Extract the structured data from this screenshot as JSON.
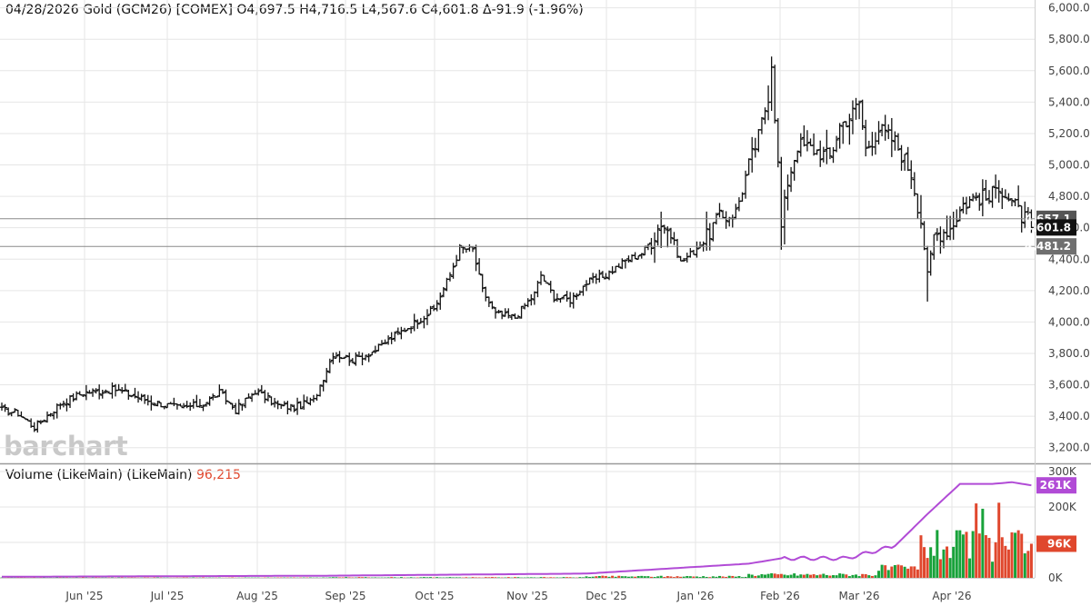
{
  "header": {
    "quote": "04/28/2026 Gold (GCM26) [COMEX] O4,697.5 H4,716.5 L4,567.6 C4,601.8 Δ-91.9 (-1.96%)"
  },
  "watermark": "barchart",
  "volume_header": {
    "label": "Volume (LikeMain)  (LikeMain)",
    "value": "96,215"
  },
  "price_labels": {
    "last": "4,601.8",
    "line2": "4,481.2",
    "line1": "4,657.1"
  },
  "volume_labels": {
    "open_interest": "261K",
    "volume": "96K"
  },
  "colors": {
    "up": "#18a23a",
    "down": "#e0472d",
    "oi_line": "#b14bd6",
    "price_bar": "#111111",
    "grid": "#e6e6e6",
    "last_label_bg": "#111111",
    "ref_label_bg": "#6f6f6f"
  },
  "chart_data": [
    {
      "type": "ohlc",
      "title": "04/28/2026 Gold (GCM26) [COMEX]",
      "ylim": [
        3100,
        6050
      ],
      "y_ticks": [
        "3,200.0",
        "3,400.0",
        "3,600.0",
        "3,800.0",
        "4,000.0",
        "4,200.0",
        "4,400.0",
        "4,600.0",
        "4,800.0",
        "5,000.0",
        "5,200.0",
        "5,400.0",
        "5,600.0",
        "5,800.0",
        "6,000.0"
      ],
      "x_labels": [
        "Jun '25",
        "Jul '25",
        "Aug '25",
        "Sep '25",
        "Oct '25",
        "Nov '25",
        "Dec '25",
        "Jan '26",
        "Feb '26",
        "Mar '26",
        "Apr '26"
      ],
      "last_bar": {
        "open": 4697.5,
        "high": 4716.5,
        "low": 4567.6,
        "close": 4601.8,
        "change": -91.9,
        "change_pct": -1.96
      },
      "reference_lines": [
        4657.1,
        4481.2
      ],
      "anchors": [
        [
          0,
          3440
        ],
        [
          5,
          3420
        ],
        [
          10,
          3330
        ],
        [
          18,
          3480
        ],
        [
          25,
          3550
        ],
        [
          35,
          3570
        ],
        [
          45,
          3500
        ],
        [
          55,
          3450
        ],
        [
          62,
          3480
        ],
        [
          67,
          3550
        ],
        [
          72,
          3440
        ],
        [
          78,
          3560
        ],
        [
          85,
          3470
        ],
        [
          90,
          3455
        ],
        [
          96,
          3500
        ],
        [
          102,
          3800
        ],
        [
          108,
          3760
        ],
        [
          115,
          3820
        ],
        [
          120,
          3900
        ],
        [
          126,
          3980
        ],
        [
          133,
          4080
        ],
        [
          138,
          4300
        ],
        [
          141,
          4470
        ],
        [
          145,
          4460
        ],
        [
          148,
          4200
        ],
        [
          152,
          4050
        ],
        [
          158,
          4030
        ],
        [
          164,
          4180
        ],
        [
          166,
          4300
        ],
        [
          170,
          4160
        ],
        [
          175,
          4140
        ],
        [
          180,
          4250
        ],
        [
          186,
          4300
        ],
        [
          192,
          4390
        ],
        [
          197,
          4440
        ],
        [
          200,
          4520
        ],
        [
          203,
          4640
        ],
        [
          206,
          4560
        ],
        [
          209,
          4380
        ],
        [
          213,
          4450
        ],
        [
          217,
          4540
        ],
        [
          220,
          4650
        ],
        [
          226,
          4700
        ],
        [
          230,
          5000
        ],
        [
          233,
          5180
        ],
        [
          236,
          5450
        ],
        [
          237,
          5660
        ],
        [
          239,
          5000
        ],
        [
          240,
          4600
        ],
        [
          242,
          4900
        ],
        [
          245,
          5130
        ],
        [
          250,
          5100
        ],
        [
          255,
          5050
        ],
        [
          258,
          5250
        ],
        [
          262,
          5330
        ],
        [
          264,
          5400
        ],
        [
          266,
          5100
        ],
        [
          270,
          5230
        ],
        [
          275,
          5150
        ],
        [
          280,
          4950
        ],
        [
          283,
          4650
        ],
        [
          285,
          4300
        ],
        [
          287,
          4550
        ],
        [
          292,
          4600
        ],
        [
          296,
          4750
        ],
        [
          300,
          4800
        ],
        [
          304,
          4780
        ],
        [
          307,
          4880
        ],
        [
          311,
          4760
        ],
        [
          315,
          4650
        ],
        [
          317,
          4601.8
        ]
      ]
    },
    {
      "type": "bar",
      "title": "Volume (LikeMain)  (LikeMain)",
      "ylim": [
        0,
        300000
      ],
      "y_ticks": [
        "0K",
        "100K",
        "200K",
        "300K"
      ],
      "latest_volume": 96215,
      "latest_open_interest": 261000,
      "open_interest_anchors": [
        [
          0,
          3000
        ],
        [
          100,
          6000
        ],
        [
          180,
          12000
        ],
        [
          230,
          40000
        ],
        [
          240,
          55000
        ],
        [
          260,
          55000
        ],
        [
          275,
          90000
        ],
        [
          285,
          180000
        ],
        [
          295,
          265000
        ],
        [
          305,
          265000
        ],
        [
          311,
          270000
        ],
        [
          317,
          261000
        ]
      ]
    }
  ]
}
